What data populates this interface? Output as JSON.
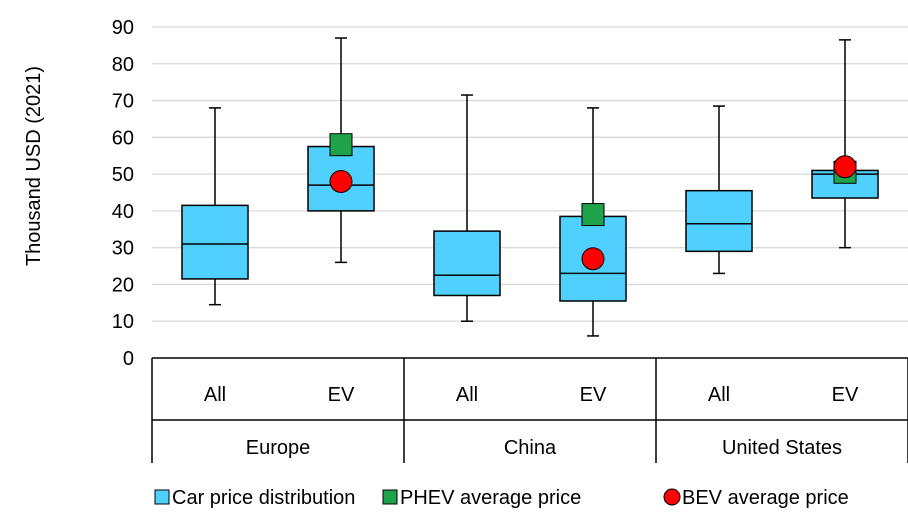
{
  "chart_data": {
    "type": "box",
    "ylabel": "Thousand USD (2021)",
    "ylim": [
      0,
      90
    ],
    "yticks": [
      0,
      10,
      20,
      30,
      40,
      50,
      60,
      70,
      80,
      90
    ],
    "grid": true,
    "groups": [
      "Europe",
      "China",
      "United States"
    ],
    "boxes": [
      {
        "group": "Europe",
        "category": "All",
        "min": 14.5,
        "q1": 21.5,
        "median": 31,
        "q3": 41.5,
        "max": 68
      },
      {
        "group": "Europe",
        "category": "EV",
        "min": 26,
        "q1": 40,
        "median": 47,
        "q3": 57.5,
        "max": 87,
        "phev_avg": 58,
        "bev_avg": 48
      },
      {
        "group": "China",
        "category": "All",
        "min": 10,
        "q1": 17,
        "median": 22.5,
        "q3": 34.5,
        "max": 71.5
      },
      {
        "group": "China",
        "category": "EV",
        "min": 6,
        "q1": 15.5,
        "median": 23,
        "q3": 38.5,
        "max": 68,
        "phev_avg": 39,
        "bev_avg": 27
      },
      {
        "group": "United States",
        "category": "All",
        "min": 23,
        "q1": 29,
        "median": 36.5,
        "q3": 45.5,
        "max": 68.5
      },
      {
        "group": "United States",
        "category": "EV",
        "min": 30,
        "q1": 43.5,
        "median": 50,
        "q3": 51,
        "max": 86.5,
        "phev_avg": 50.5,
        "bev_avg": 52
      }
    ],
    "legend": {
      "position": "bottom",
      "items": [
        {
          "name": "Car price distribution",
          "color": "#4FD0FF",
          "marker": "square"
        },
        {
          "name": "PHEV average price",
          "color": "#1EA34A",
          "marker": "square"
        },
        {
          "name": "BEV average price",
          "color": "#FF0000",
          "marker": "circle"
        }
      ]
    }
  }
}
